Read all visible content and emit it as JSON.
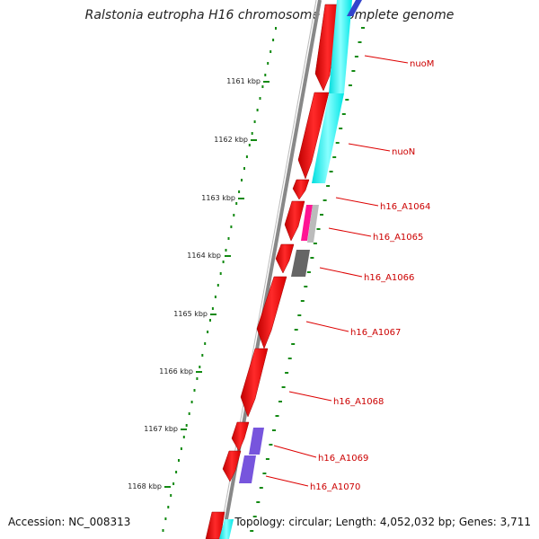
{
  "title": "Ralstonia eutropha H16 chromosome 1, complete genome",
  "footer": {
    "accession": "Accession: NC_008313",
    "summary": "Topology: circular; Length: 4,052,032 bp; Genes: 3,711"
  },
  "scale": {
    "unit": "kbp",
    "labels": [
      "1161 kbp",
      "1162 kbp",
      "1163 kbp",
      "1164 kbp",
      "1165 kbp",
      "1166 kbp",
      "1167 kbp",
      "1168 kbp"
    ]
  },
  "genes": [
    {
      "name": "nuoM",
      "color": "#ff2020",
      "strand_color": "#00ffff"
    },
    {
      "name": "nuoN",
      "color": "#ff2020",
      "strand_color": "#00ffff"
    },
    {
      "name": "h16_A1064",
      "color": "#ff2020",
      "strand_color": "#ff1493"
    },
    {
      "name": "h16_A1065",
      "color": "#ff2020",
      "strand_color": "#bbbbbb"
    },
    {
      "name": "h16_A1066",
      "color": "#ff2020",
      "strand_color": "#666666"
    },
    {
      "name": "h16_A1067",
      "color": "#ff2020",
      "strand_color": null
    },
    {
      "name": "h16_A1068",
      "color": "#ff2020",
      "strand_color": null
    },
    {
      "name": "h16_A1069",
      "color": "#ff2020",
      "strand_color": "#7755dd"
    },
    {
      "name": "h16_A1070",
      "color": "#ff2020",
      "strand_color": "#7755dd"
    }
  ],
  "colors": {
    "backbone": "#888888",
    "tick": "#138a13",
    "label": "#cc0000",
    "leader": "#dd0000"
  }
}
